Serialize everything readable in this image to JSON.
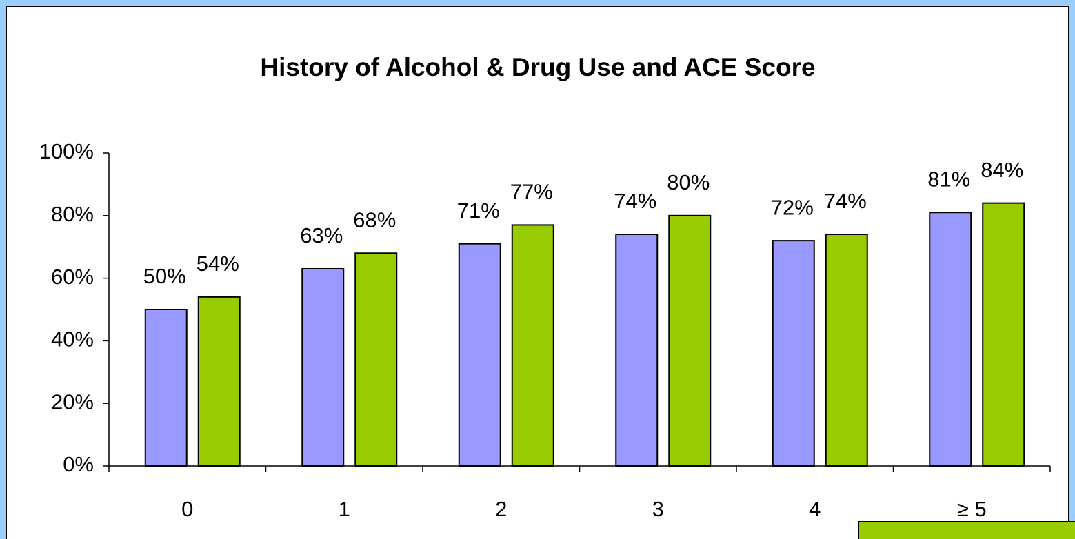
{
  "chart_data": {
    "type": "bar",
    "title": "History of Alcohol & Drug Use and ACE Score",
    "categories": [
      "0",
      "1",
      "2",
      "3",
      "4",
      "≥ 5"
    ],
    "series": [
      {
        "color": "#9999ff",
        "values": [
          50,
          63,
          71,
          74,
          72,
          81
        ],
        "value_labels": [
          "50%",
          "63%",
          "71%",
          "74%",
          "72%",
          "81%"
        ]
      },
      {
        "color": "#99cc00",
        "values": [
          54,
          68,
          77,
          80,
          74,
          84
        ],
        "value_labels": [
          "54%",
          "68%",
          "77%",
          "80%",
          "74%",
          "84%"
        ]
      }
    ],
    "ylim": [
      0,
      100
    ],
    "yticks": [
      {
        "value": 0,
        "label": "0%"
      },
      {
        "value": 20,
        "label": "20%"
      },
      {
        "value": 40,
        "label": "40%"
      },
      {
        "value": 60,
        "label": "60%"
      },
      {
        "value": 80,
        "label": "80%"
      },
      {
        "value": 100,
        "label": "100%"
      }
    ],
    "grid": false
  }
}
